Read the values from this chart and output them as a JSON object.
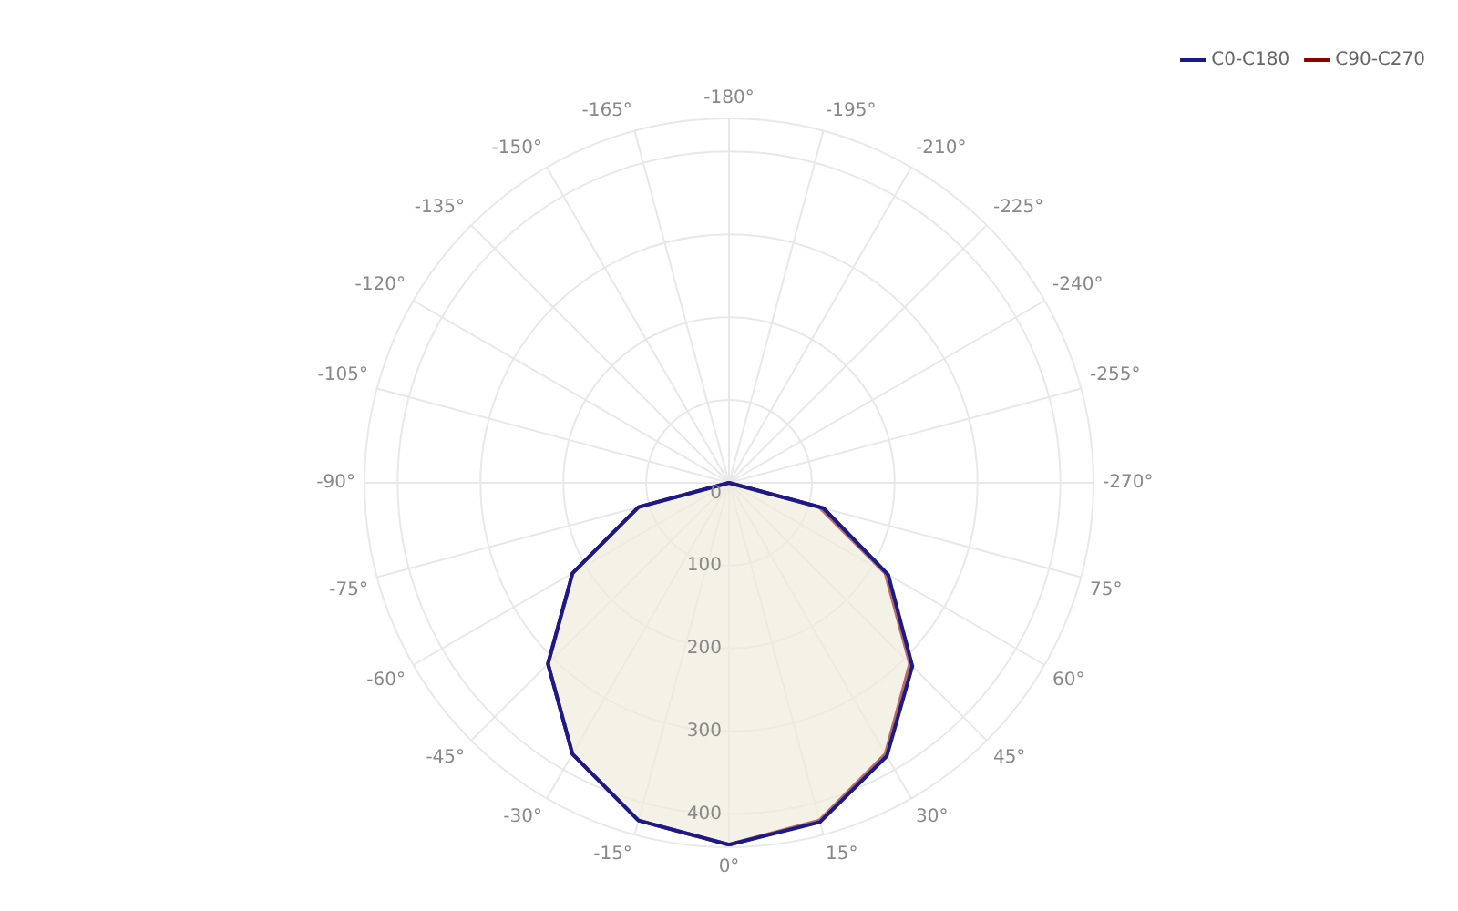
{
  "chart_data": {
    "type": "radar",
    "categories": [
      "-180°",
      "-195°",
      "-210°",
      "-225°",
      "-240°",
      "-255°",
      "-270°",
      "75°",
      "60°",
      "45°",
      "30°",
      "15°",
      "0°",
      "-15°",
      "-30°",
      "-45°",
      "-60°",
      "-75°",
      "-90°",
      "-105°",
      "-120°",
      "-135°",
      "-150°",
      "-165°"
    ],
    "series": [
      {
        "name": "C0-C180",
        "color": "#1a1a8c",
        "values": [
          0,
          0,
          0,
          0,
          0,
          0,
          0,
          118,
          222,
          313,
          381,
          424,
          437,
          422,
          378,
          309,
          218,
          113,
          0,
          0,
          0,
          0,
          0,
          0
        ]
      },
      {
        "name": "C90-C270",
        "color": "#8b0000",
        "values": [
          0,
          0,
          0,
          0,
          0,
          0,
          0,
          113,
          218,
          309,
          378,
          422,
          437,
          422,
          378,
          309,
          218,
          113,
          0,
          0,
          0,
          0,
          0,
          0
        ]
      }
    ],
    "ylim": [
      0,
      440
    ],
    "yticks": [
      0,
      100,
      200,
      300,
      400
    ],
    "grid": true,
    "legend": "top right",
    "marker": "none",
    "line_style": "solid"
  }
}
